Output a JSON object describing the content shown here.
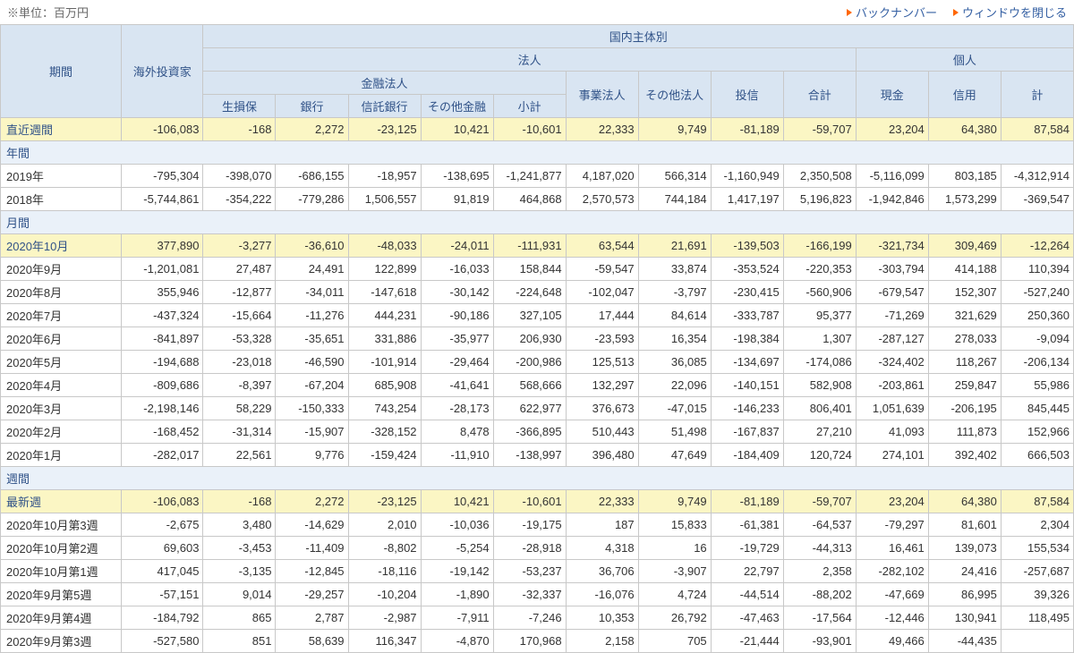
{
  "unit_note": "※単位：百万円",
  "links": {
    "backnumber": "バックナンバー",
    "close": "ウィンドウを閉じる"
  },
  "headers": {
    "period": "期間",
    "foreign": "海外投資家",
    "domestic": "国内主体別",
    "houjin": "法人",
    "kojin": "個人",
    "kinyuu": "金融法人",
    "seisonpo": "生損保",
    "bank": "銀行",
    "trust": "信託銀行",
    "otherfin": "その他金融",
    "subtotal": "小計",
    "bizcorp": "事業法人",
    "othercorp": "その他法人",
    "toushin": "投信",
    "goukei": "合計",
    "genkin": "現金",
    "shinyou": "信用",
    "kei": "計"
  },
  "sections": {
    "nenkan": "年間",
    "gekkan": "月間",
    "shuukan": "週間"
  },
  "rows": {
    "recent_week": {
      "label": "直近週間",
      "v": [
        "-106,083",
        "-168",
        "2,272",
        "-23,125",
        "10,421",
        "-10,601",
        "22,333",
        "9,749",
        "-81,189",
        "-59,707",
        "23,204",
        "64,380",
        "87,584"
      ]
    },
    "y2019": {
      "label": "2019年",
      "v": [
        "-795,304",
        "-398,070",
        "-686,155",
        "-18,957",
        "-138,695",
        "-1,241,877",
        "4,187,020",
        "566,314",
        "-1,160,949",
        "2,350,508",
        "-5,116,099",
        "803,185",
        "-4,312,914"
      ]
    },
    "y2018": {
      "label": "2018年",
      "v": [
        "-5,744,861",
        "-354,222",
        "-779,286",
        "1,506,557",
        "91,819",
        "464,868",
        "2,570,573",
        "744,184",
        "1,417,197",
        "5,196,823",
        "-1,942,846",
        "1,573,299",
        "-369,547"
      ]
    },
    "m2020_10": {
      "label": "2020年10月",
      "v": [
        "377,890",
        "-3,277",
        "-36,610",
        "-48,033",
        "-24,011",
        "-111,931",
        "63,544",
        "21,691",
        "-139,503",
        "-166,199",
        "-321,734",
        "309,469",
        "-12,264"
      ]
    },
    "m2020_09": {
      "label": "2020年9月",
      "v": [
        "-1,201,081",
        "27,487",
        "24,491",
        "122,899",
        "-16,033",
        "158,844",
        "-59,547",
        "33,874",
        "-353,524",
        "-220,353",
        "-303,794",
        "414,188",
        "110,394"
      ]
    },
    "m2020_08": {
      "label": "2020年8月",
      "v": [
        "355,946",
        "-12,877",
        "-34,011",
        "-147,618",
        "-30,142",
        "-224,648",
        "-102,047",
        "-3,797",
        "-230,415",
        "-560,906",
        "-679,547",
        "152,307",
        "-527,240"
      ]
    },
    "m2020_07": {
      "label": "2020年7月",
      "v": [
        "-437,324",
        "-15,664",
        "-11,276",
        "444,231",
        "-90,186",
        "327,105",
        "17,444",
        "84,614",
        "-333,787",
        "95,377",
        "-71,269",
        "321,629",
        "250,360"
      ]
    },
    "m2020_06": {
      "label": "2020年6月",
      "v": [
        "-841,897",
        "-53,328",
        "-35,651",
        "331,886",
        "-35,977",
        "206,930",
        "-23,593",
        "16,354",
        "-198,384",
        "1,307",
        "-287,127",
        "278,033",
        "-9,094"
      ]
    },
    "m2020_05": {
      "label": "2020年5月",
      "v": [
        "-194,688",
        "-23,018",
        "-46,590",
        "-101,914",
        "-29,464",
        "-200,986",
        "125,513",
        "36,085",
        "-134,697",
        "-174,086",
        "-324,402",
        "118,267",
        "-206,134"
      ]
    },
    "m2020_04": {
      "label": "2020年4月",
      "v": [
        "-809,686",
        "-8,397",
        "-67,204",
        "685,908",
        "-41,641",
        "568,666",
        "132,297",
        "22,096",
        "-140,151",
        "582,908",
        "-203,861",
        "259,847",
        "55,986"
      ]
    },
    "m2020_03": {
      "label": "2020年3月",
      "v": [
        "-2,198,146",
        "58,229",
        "-150,333",
        "743,254",
        "-28,173",
        "622,977",
        "376,673",
        "-47,015",
        "-146,233",
        "806,401",
        "1,051,639",
        "-206,195",
        "845,445"
      ]
    },
    "m2020_02": {
      "label": "2020年2月",
      "v": [
        "-168,452",
        "-31,314",
        "-15,907",
        "-328,152",
        "8,478",
        "-366,895",
        "510,443",
        "51,498",
        "-167,837",
        "27,210",
        "41,093",
        "111,873",
        "152,966"
      ]
    },
    "m2020_01": {
      "label": "2020年1月",
      "v": [
        "-282,017",
        "22,561",
        "9,776",
        "-159,424",
        "-11,910",
        "-138,997",
        "396,480",
        "47,649",
        "-184,409",
        "120,724",
        "274,101",
        "392,402",
        "666,503"
      ]
    },
    "latest_week": {
      "label": "最新週",
      "v": [
        "-106,083",
        "-168",
        "2,272",
        "-23,125",
        "10,421",
        "-10,601",
        "22,333",
        "9,749",
        "-81,189",
        "-59,707",
        "23,204",
        "64,380",
        "87,584"
      ]
    },
    "w2020_10_3": {
      "label": "2020年10月第3週",
      "v": [
        "-2,675",
        "3,480",
        "-14,629",
        "2,010",
        "-10,036",
        "-19,175",
        "187",
        "15,833",
        "-61,381",
        "-64,537",
        "-79,297",
        "81,601",
        "2,304"
      ]
    },
    "w2020_10_2": {
      "label": "2020年10月第2週",
      "v": [
        "69,603",
        "-3,453",
        "-11,409",
        "-8,802",
        "-5,254",
        "-28,918",
        "4,318",
        "16",
        "-19,729",
        "-44,313",
        "16,461",
        "139,073",
        "155,534"
      ]
    },
    "w2020_10_1": {
      "label": "2020年10月第1週",
      "v": [
        "417,045",
        "-3,135",
        "-12,845",
        "-18,116",
        "-19,142",
        "-53,237",
        "36,706",
        "-3,907",
        "22,797",
        "2,358",
        "-282,102",
        "24,416",
        "-257,687"
      ]
    },
    "w2020_09_5": {
      "label": "2020年9月第5週",
      "v": [
        "-57,151",
        "9,014",
        "-29,257",
        "-10,204",
        "-1,890",
        "-32,337",
        "-16,076",
        "4,724",
        "-44,514",
        "-88,202",
        "-47,669",
        "86,995",
        "39,326"
      ]
    },
    "w2020_09_4": {
      "label": "2020年9月第4週",
      "v": [
        "-184,792",
        "865",
        "2,787",
        "-2,987",
        "-7,911",
        "-7,246",
        "10,353",
        "26,792",
        "-47,463",
        "-17,564",
        "-12,446",
        "130,941",
        "118,495"
      ]
    },
    "w2020_09_3": {
      "label": "2020年9月第3週",
      "v": [
        "-527,580",
        "851",
        "58,639",
        "116,347",
        "-4,870",
        "170,968",
        "2,158",
        "705",
        "-21,444",
        "-93,901",
        "49,466",
        "-44,435",
        ""
      ]
    }
  }
}
